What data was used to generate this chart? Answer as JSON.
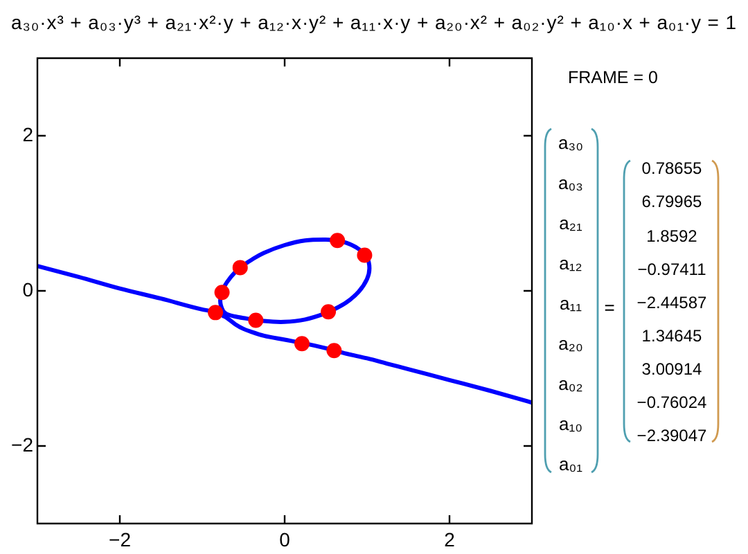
{
  "chart_data": [
    {
      "type": "line",
      "title": "a₃₀·x³ + a₀₃·y³ + a₂₁·x²·y + a₁₂·x·y² + a₁₁·x·y + a₂₀·x² + a₀₂·y² + a₁₀·x + a₀₁·y = 1",
      "xlim": [
        -3,
        3
      ],
      "ylim": [
        -3,
        3
      ],
      "xticks": [
        -2,
        0,
        2
      ],
      "yticks": [
        -2,
        0,
        2
      ],
      "series": [
        {
          "type": "line",
          "color": "#0000ff",
          "x": [
            -3,
            -2.5,
            -2,
            -1.5,
            -1,
            -0.9,
            -0.78,
            -0.75,
            -0.7,
            -0.6,
            -0.5,
            -0.4,
            -0.25,
            0,
            0.25,
            0.5,
            0.75,
            1,
            1.25,
            1.5,
            2,
            2.5,
            3
          ],
          "values": [
            0.32,
            0.18,
            0.03,
            -0.1,
            -0.24,
            -0.26,
            -0.3,
            -0.32,
            -0.35,
            -0.43,
            -0.49,
            -0.53,
            -0.58,
            -0.63,
            -0.68,
            -0.74,
            -0.81,
            -0.87,
            -0.94,
            -1.01,
            -1.15,
            -1.29,
            -1.44
          ]
        },
        {
          "type": "scatter",
          "color": "#ff0000",
          "marker": "circle",
          "x": [
            0.64,
            0.97,
            -0.54,
            -0.76,
            -0.84,
            -0.35,
            0.53,
            0.21,
            0.6
          ],
          "values": [
            0.65,
            0.46,
            0.3,
            -0.02,
            -0.28,
            -0.38,
            -0.27,
            -0.68,
            -0.77
          ]
        }
      ]
    },
    {
      "type": "other",
      "title": "FRAME = 0",
      "categories": [
        "a₃₀",
        "a₀₃",
        "a₂₁",
        "a₁₂",
        "a₁₁",
        "a₂₀",
        "a₀₂",
        "a₁₀",
        "a₀₁"
      ],
      "values": [
        0.78655,
        6.79965,
        1.8592,
        -0.97411,
        -2.44587,
        1.34645,
        3.00914,
        -0.76024,
        -2.39047
      ],
      "data_labels": true,
      "annotations": [
        "="
      ]
    }
  ]
}
